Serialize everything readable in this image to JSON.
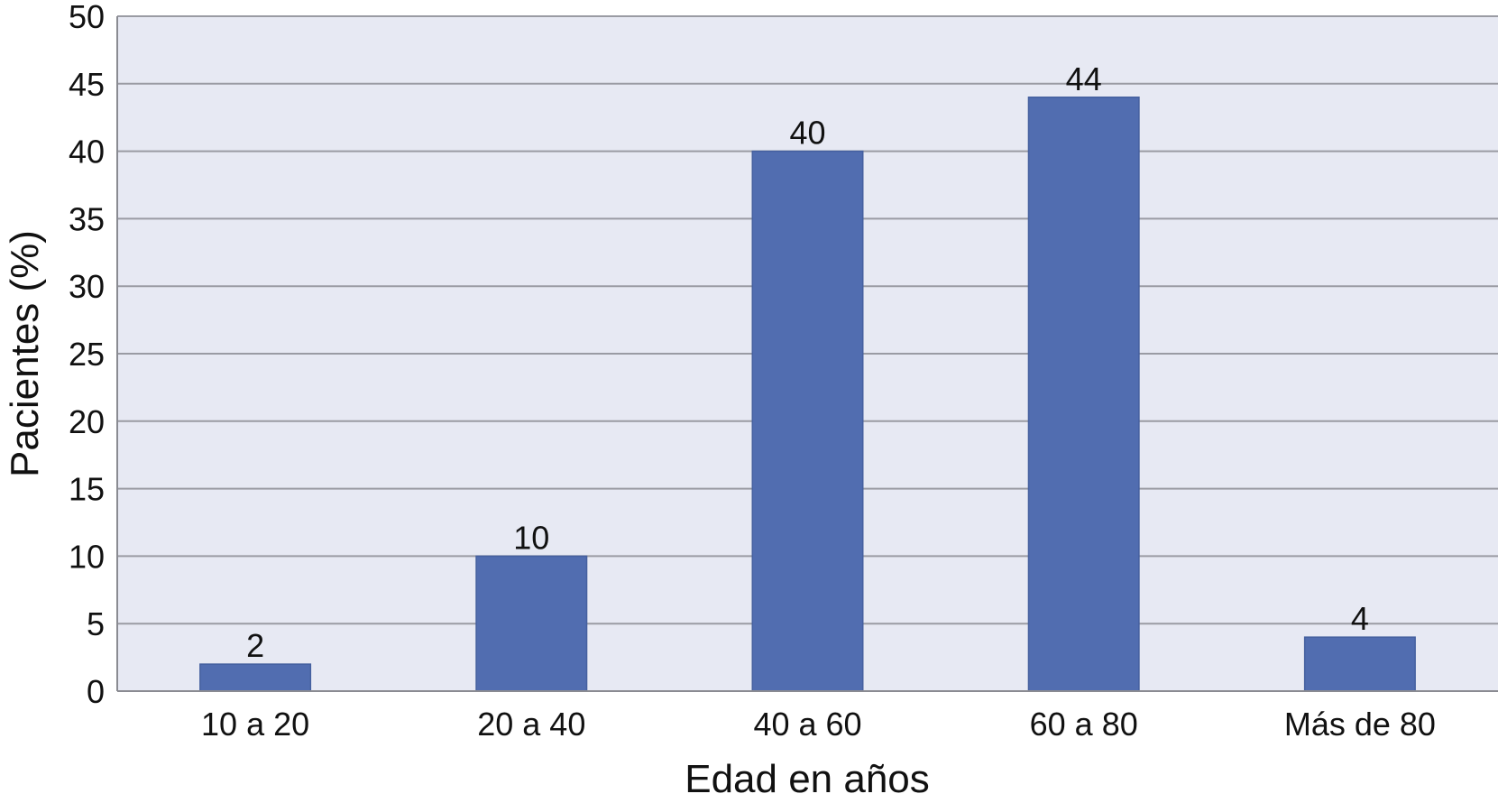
{
  "chart_data": {
    "type": "bar",
    "categories": [
      "10 a 20",
      "20 a 40",
      "40 a 60",
      "60 a 80",
      "Más de 80"
    ],
    "values": [
      2,
      10,
      40,
      44,
      4
    ],
    "data_labels": [
      "2",
      "10",
      "40",
      "44",
      "4"
    ],
    "title": "",
    "xlabel": "Edad en años",
    "ylabel": "Pacientes (%)",
    "ylim": [
      0,
      50
    ],
    "yticks": [
      "0",
      "5",
      "10",
      "15",
      "20",
      "25",
      "30",
      "35",
      "40",
      "45",
      "50"
    ],
    "grid": true,
    "legend": "none",
    "colors": {
      "bar": "#516db0",
      "plot_background": "#e7e9f3",
      "grid": "#9a9ba3"
    }
  }
}
